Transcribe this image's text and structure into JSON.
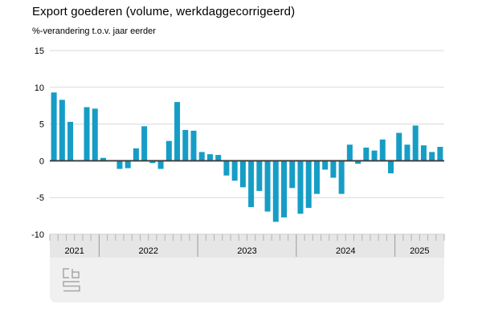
{
  "chart_data": {
    "type": "bar",
    "title": "Export goederen (volume, werkdaggecorrigeerd)",
    "subtitle": "%-verandering t.o.v. jaar eerder",
    "ylabel": "%-verandering t.o.v. jaar eerder",
    "xlabel": "",
    "ylim": [
      -10,
      15
    ],
    "yticks": [
      15,
      10,
      5,
      0,
      -5,
      -10
    ],
    "grid": true,
    "legend": "none",
    "bar_color": "#169dc6",
    "zero_line_color": "#404040",
    "grid_color": "#d9d9d9",
    "axis_band_color": "#e6e6e6",
    "footer_color": "#f0f0f0",
    "year_labels": [
      "2021",
      "2022",
      "2023",
      "2024",
      "2025"
    ],
    "months_per_year": [
      6,
      12,
      12,
      12,
      6
    ],
    "categories": [
      "2021-07",
      "2021-08",
      "2021-09",
      "2021-10",
      "2021-11",
      "2021-12",
      "2022-01",
      "2022-02",
      "2022-03",
      "2022-04",
      "2022-05",
      "2022-06",
      "2022-07",
      "2022-08",
      "2022-09",
      "2022-10",
      "2022-11",
      "2022-12",
      "2023-01",
      "2023-02",
      "2023-03",
      "2023-04",
      "2023-05",
      "2023-06",
      "2023-07",
      "2023-08",
      "2023-09",
      "2023-10",
      "2023-11",
      "2023-12",
      "2024-01",
      "2024-02",
      "2024-03",
      "2024-04",
      "2024-05",
      "2024-06",
      "2024-07",
      "2024-08",
      "2024-09",
      "2024-10",
      "2024-11",
      "2024-12",
      "2025-01",
      "2025-02",
      "2025-03",
      "2025-04",
      "2025-05",
      "2025-06"
    ],
    "values": [
      9.3,
      8.3,
      5.3,
      0.0,
      7.3,
      7.1,
      0.4,
      0.0,
      -1.1,
      -1.0,
      1.7,
      4.7,
      -0.3,
      -1.1,
      2.7,
      8.0,
      4.2,
      4.1,
      1.2,
      0.9,
      0.8,
      -2.0,
      -2.7,
      -3.6,
      -6.3,
      -4.1,
      -6.9,
      -8.3,
      -7.7,
      -3.7,
      -7.2,
      -6.4,
      -4.5,
      -1.2,
      -2.3,
      -4.5,
      2.2,
      -0.4,
      1.8,
      1.4,
      2.9,
      -1.7,
      3.8,
      2.2,
      4.8,
      2.1,
      1.2,
      1.9
    ]
  }
}
